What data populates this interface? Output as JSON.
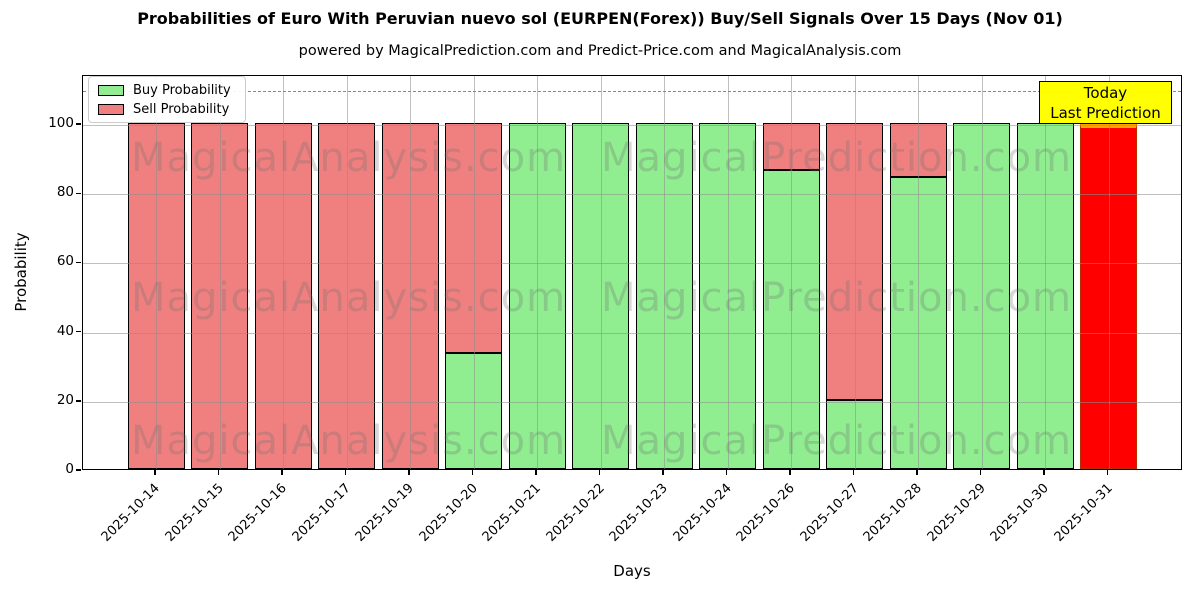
{
  "title": "Probabilities of Euro With Peruvian nuevo sol (EURPEN(Forex)) Buy/Sell Signals Over 15 Days (Nov 01)",
  "subtitle": "powered by MagicalPrediction.com and Predict-Price.com and MagicalAnalysis.com",
  "legend": {
    "items": [
      {
        "label": "Buy Probability",
        "color": "#90ee90"
      },
      {
        "label": "Sell Probability",
        "color": "#f08080"
      }
    ]
  },
  "annotation": {
    "line1": "Today",
    "line2": "Last Prediction",
    "bg": "#ffff00"
  },
  "watermarks": {
    "left": "MagicalAnalysis.com",
    "right": "MagicalPrediction.com"
  },
  "axes": {
    "xlabel": "Days",
    "ylabel": "Probability"
  },
  "chart_data": {
    "type": "bar",
    "stacked": true,
    "title": "Probabilities of Euro With Peruvian nuevo sol (EURPEN(Forex)) Buy/Sell Signals Over 15 Days (Nov 01)",
    "xlabel": "Days",
    "ylabel": "Probability",
    "ylim": [
      0,
      114
    ],
    "yticks": [
      0,
      20,
      40,
      60,
      80,
      100
    ],
    "dashed_guide_y": 110,
    "grid": true,
    "legend_position": "upper left",
    "categories": [
      "2025-10-14",
      "2025-10-15",
      "2025-10-16",
      "2025-10-17",
      "2025-10-19",
      "2025-10-20",
      "2025-10-21",
      "2025-10-22",
      "2025-10-23",
      "2025-10-24",
      "2025-10-26",
      "2025-10-27",
      "2025-10-28",
      "2025-10-29",
      "2025-10-30",
      "2025-10-31"
    ],
    "series": [
      {
        "name": "Buy Probability",
        "color": "#90ee90",
        "values": [
          0,
          0,
          0,
          0,
          0,
          33.5,
          100,
          100,
          100,
          100,
          86.5,
          20,
          84.5,
          100,
          100,
          0
        ]
      },
      {
        "name": "Sell Probability",
        "color": "#f08080",
        "values": [
          100,
          100,
          100,
          100,
          100,
          66.5,
          0,
          0,
          0,
          0,
          13.5,
          80,
          15.5,
          0,
          0,
          100
        ]
      }
    ],
    "today_bar": {
      "index": 15,
      "category": "2025-10-31",
      "color": "#ff0000",
      "edge_color": "#ffa500",
      "note": [
        "Today",
        "Last Prediction"
      ]
    }
  }
}
